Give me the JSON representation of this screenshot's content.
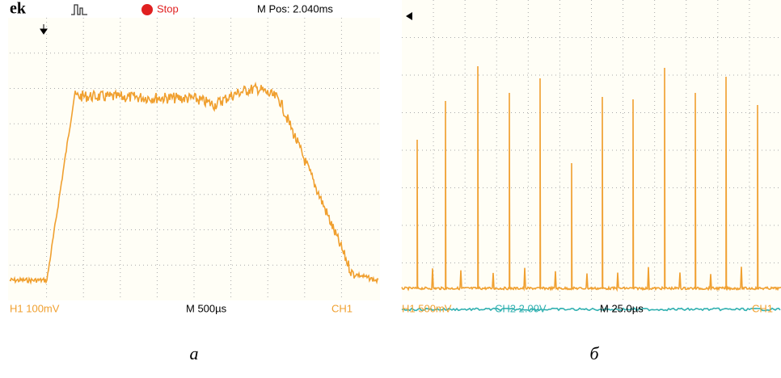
{
  "panels": [
    {
      "header": {
        "brand": "ek",
        "status": "Stop",
        "position": "M Pos: 2.040ms"
      },
      "footer": {
        "channel1": "H1  100mV",
        "timebase": "M 500µs",
        "trigger": "CH1"
      },
      "caption": "а"
    },
    {
      "footer": {
        "channel1": "H1  500mV",
        "channel2": "CH2  2.00V",
        "timebase": "M 25.0µs",
        "trigger": "CH1"
      },
      "caption": "б"
    }
  ]
}
